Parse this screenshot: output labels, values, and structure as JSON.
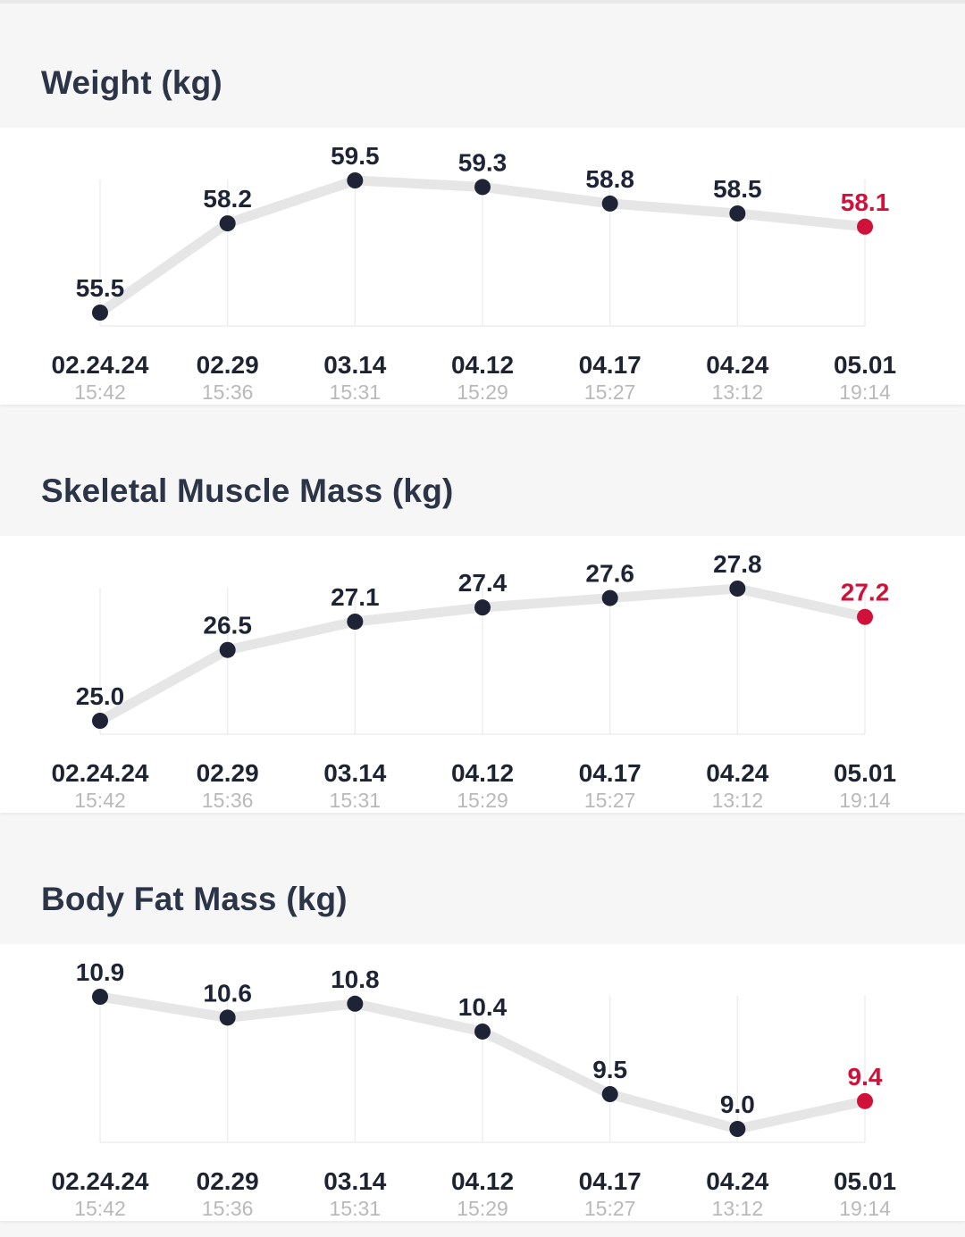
{
  "colors": {
    "point": "#1e2436",
    "latest": "#d0113a",
    "line": "#e6e6e6",
    "grid": "#eeeeee",
    "title": "#2c3447"
  },
  "chart_data": [
    {
      "type": "line",
      "title": "Weight (kg)",
      "categories": [
        "02.24.24",
        "02.29",
        "03.14",
        "04.12",
        "04.17",
        "04.24",
        "05.01"
      ],
      "times": [
        "15:42",
        "15:36",
        "15:31",
        "15:29",
        "15:27",
        "13:12",
        "19:14"
      ],
      "values": [
        55.5,
        58.2,
        59.5,
        59.3,
        58.8,
        58.5,
        58.1
      ],
      "ylim": [
        55.5,
        59.5
      ],
      "highlight": "last",
      "grid": "vertical"
    },
    {
      "type": "line",
      "title": "Skeletal Muscle Mass (kg)",
      "categories": [
        "02.24.24",
        "02.29",
        "03.14",
        "04.12",
        "04.17",
        "04.24",
        "05.01"
      ],
      "times": [
        "15:42",
        "15:36",
        "15:31",
        "15:29",
        "15:27",
        "13:12",
        "19:14"
      ],
      "values": [
        25.0,
        26.5,
        27.1,
        27.4,
        27.6,
        27.8,
        27.2
      ],
      "ylim": [
        25.0,
        27.8
      ],
      "highlight": "last",
      "grid": "vertical"
    },
    {
      "type": "line",
      "title": "Body Fat Mass (kg)",
      "categories": [
        "02.24.24",
        "02.29",
        "03.14",
        "04.12",
        "04.17",
        "04.24",
        "05.01"
      ],
      "times": [
        "15:42",
        "15:36",
        "15:31",
        "15:29",
        "15:27",
        "13:12",
        "19:14"
      ],
      "values": [
        10.9,
        10.6,
        10.8,
        10.4,
        9.5,
        9.0,
        9.4
      ],
      "ylim": [
        9.0,
        10.9
      ],
      "highlight": "last",
      "grid": "vertical"
    }
  ]
}
